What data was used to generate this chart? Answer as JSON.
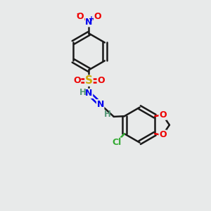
{
  "bg_color": "#e8eaea",
  "bond_color": "#1a1a1a",
  "N_color": "#0000ee",
  "O_color": "#ee0000",
  "S_color": "#ccaa00",
  "Cl_color": "#33aa33",
  "H_color": "#559977",
  "linewidth": 1.8,
  "fig_size": [
    3.0,
    3.0
  ],
  "dpi": 100,
  "xlim": [
    0,
    10
  ],
  "ylim": [
    0,
    10
  ]
}
